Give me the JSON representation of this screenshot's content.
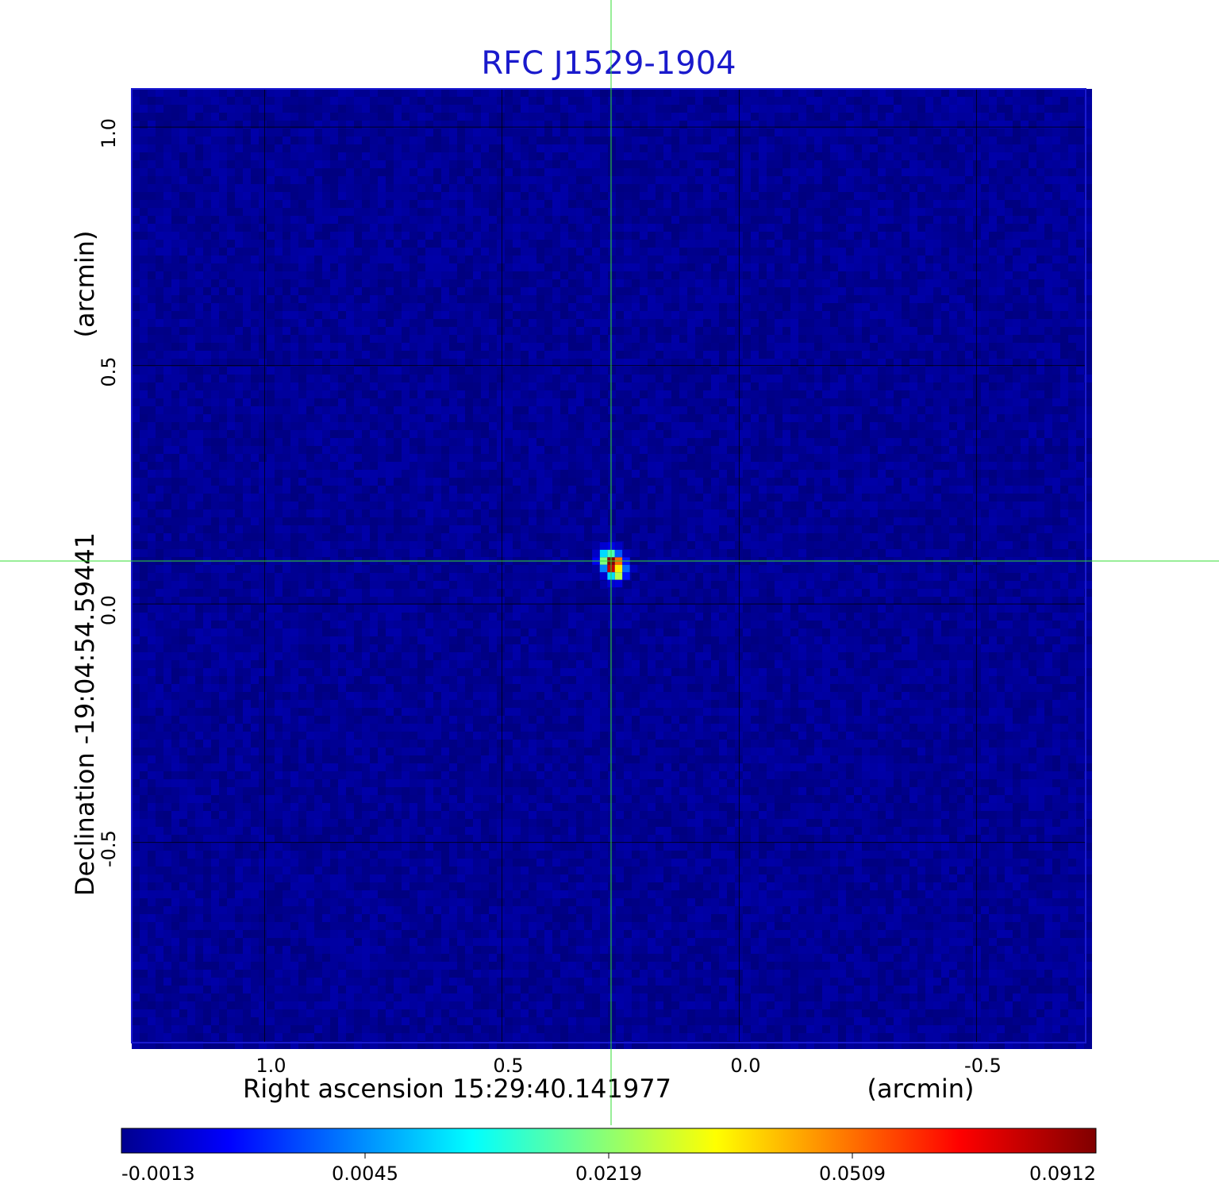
{
  "chart_data": {
    "type": "heatmap",
    "title": "RFC J1529-1904",
    "xlabel": "Right ascension  15:29:40.141977",
    "xlabel_unit": "(arcmin)",
    "ylabel": "Declination  -19:04:54.59441",
    "ylabel_unit": "(arcmin)",
    "xlim": [
      1.28,
      -0.73
    ],
    "ylim": [
      -0.92,
      1.08
    ],
    "x_ticks": [
      {
        "value": 1.0,
        "label": "1.0"
      },
      {
        "value": 0.5,
        "label": "0.5"
      },
      {
        "value": 0.0,
        "label": "0.0"
      },
      {
        "value": -0.5,
        "label": "-0.5"
      }
    ],
    "y_ticks": [
      {
        "value": 1.0,
        "label": "1.0"
      },
      {
        "value": 0.5,
        "label": "0.5"
      },
      {
        "value": 0.0,
        "label": "0.0"
      },
      {
        "value": -0.5,
        "label": "-0.5"
      }
    ],
    "grid": true,
    "crosshair": {
      "x": 0.27,
      "y": 0.09,
      "color": "#33dd33"
    },
    "colormap": "jet",
    "colorbar": {
      "location": "bottom",
      "ticks": [
        "-0.0013",
        "0.0045",
        "0.0219",
        "0.0509",
        "0.0912"
      ],
      "min": -0.0013,
      "max": 0.0912
    },
    "source": {
      "x": 0.27,
      "y": 0.09,
      "peak": 0.0912,
      "pixels": [
        {
          "dx": 0,
          "dy": 0,
          "value": 0.0912
        },
        {
          "dx": 0,
          "dy": -1,
          "value": 0.085
        },
        {
          "dx": 1,
          "dy": 0,
          "value": 0.07
        },
        {
          "dx": 1,
          "dy": -1,
          "value": 0.058
        },
        {
          "dx": 1,
          "dy": -2,
          "value": 0.05
        },
        {
          "dx": -1,
          "dy": 0,
          "value": 0.045
        },
        {
          "dx": 0,
          "dy": 1,
          "value": 0.04
        },
        {
          "dx": -1,
          "dy": 1,
          "value": 0.03
        },
        {
          "dx": 0,
          "dy": -2,
          "value": 0.03
        },
        {
          "dx": -1,
          "dy": -1,
          "value": 0.022
        },
        {
          "dx": 2,
          "dy": -1,
          "value": 0.02
        },
        {
          "dx": 1,
          "dy": 1,
          "value": 0.018
        },
        {
          "dx": 2,
          "dy": 0,
          "value": 0.012
        },
        {
          "dx": 2,
          "dy": -2,
          "value": 0.012
        },
        {
          "dx": -2,
          "dy": 0,
          "value": 0.009
        },
        {
          "dx": 0,
          "dy": 2,
          "value": 0.008
        },
        {
          "dx": -1,
          "dy": 2,
          "value": 0.006
        },
        {
          "dx": 1,
          "dy": -3,
          "value": 0.007
        },
        {
          "dx": 0,
          "dy": -3,
          "value": 0.006
        },
        {
          "dx": 1,
          "dy": 2,
          "value": 0.005
        },
        {
          "dx": -2,
          "dy": 1,
          "value": 0.005
        },
        {
          "dx": -1,
          "dy": -2,
          "value": 0.006
        },
        {
          "dx": 3,
          "dy": -1,
          "value": 0.004
        },
        {
          "dx": 2,
          "dy": 1,
          "value": 0.004
        }
      ]
    },
    "background_level": 0.0005
  }
}
